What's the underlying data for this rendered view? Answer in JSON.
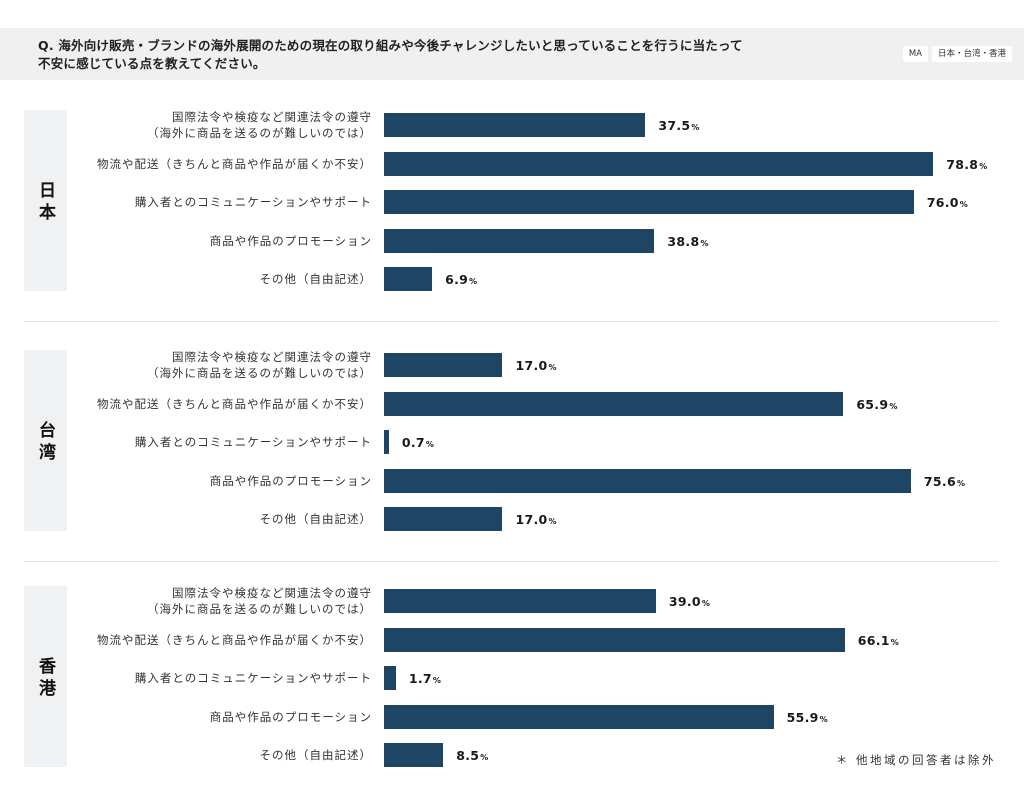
{
  "header": {
    "question_line1": "Q. 海外向け販売・ブランドの海外展開のための現在の取り組みや今後チャレンジしたいと思っていることを行うに当たって",
    "question_line2": "不安に感じている点を教えてください。",
    "badge_answer_type": "MA",
    "badge_regions": "日本・台湾・香港"
  },
  "colors": {
    "bar": "#1e4564",
    "panel": "#f0f1f2",
    "header_background": "#f0f0f0"
  },
  "chart_data": [
    {
      "type": "bar",
      "orientation": "horizontal",
      "title": "日本",
      "unit": "%",
      "categories": [
        "国際法令や検疫など関連法令の遵守\n（海外に商品を送るのが難しいのでは）",
        "物流や配送（きちんと商品や作品が届くか不安）",
        "購入者とのコミュニケーションやサポート",
        "商品や作品のプロモーション",
        "その他（自由記述）"
      ],
      "values": [
        37.5,
        78.8,
        76.0,
        38.8,
        6.9
      ],
      "value_labels": [
        "37.5",
        "78.8",
        "76.0",
        "38.8",
        "6.9"
      ]
    },
    {
      "type": "bar",
      "orientation": "horizontal",
      "title": "台湾",
      "unit": "%",
      "categories": [
        "国際法令や検疫など関連法令の遵守\n（海外に商品を送るのが難しいのでは）",
        "物流や配送（きちんと商品や作品が届くか不安）",
        "購入者とのコミュニケーションやサポート",
        "商品や作品のプロモーション",
        "その他（自由記述）"
      ],
      "values": [
        17.0,
        65.9,
        0.7,
        75.6,
        17.0
      ],
      "value_labels": [
        "17.0",
        "65.9",
        "0.7",
        "75.6",
        "17.0"
      ]
    },
    {
      "type": "bar",
      "orientation": "horizontal",
      "title": "香港",
      "unit": "%",
      "categories": [
        "国際法令や検疫など関連法令の遵守\n（海外に商品を送るのが難しいのでは）",
        "物流や配送（きちんと商品や作品が届くか不安）",
        "購入者とのコミュニケーションやサポート",
        "商品や作品のプロモーション",
        "その他（自由記述）"
      ],
      "values": [
        39.0,
        66.1,
        1.7,
        55.9,
        8.5
      ],
      "value_labels": [
        "39.0",
        "66.1",
        "1.7",
        "55.9",
        "8.5"
      ]
    }
  ],
  "footnote": "＊ 他地域の回答者は除外"
}
